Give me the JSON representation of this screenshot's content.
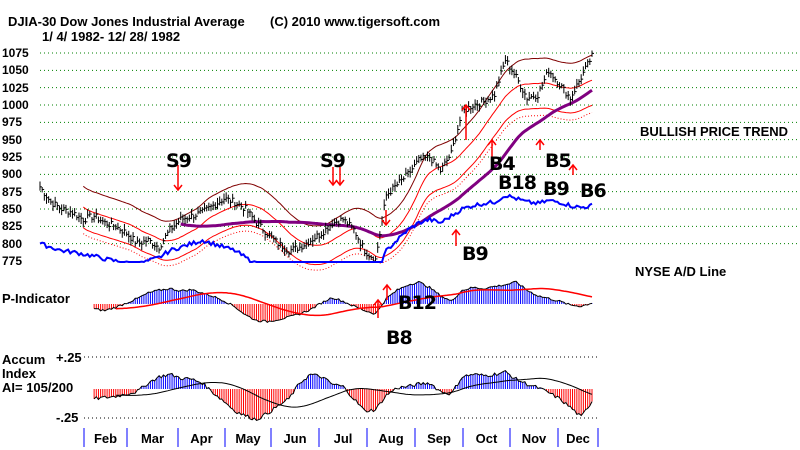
{
  "header": {
    "title": "DJIA-30  Dow Jones Industrial Average",
    "copyright": "(C) 2010 www.tigersoft.com",
    "date_range": "1/ 4/ 1982- 12/ 28/ 1982"
  },
  "labels": {
    "trend": "BULLISH PRICE TREND",
    "ad_line": "NYSE A/D Line",
    "p_indicator": "P-Indicator",
    "accum_1": "Accum",
    "accum_2": "Index",
    "ai": "AI= 105/200",
    "ai_top": "+.25",
    "ai_bottom": "-.25"
  },
  "signals": [
    "S9",
    "S9",
    "B4",
    "B18",
    "B5",
    "B9",
    "B6",
    "B9",
    "B12",
    "B8"
  ],
  "colors": {
    "price": "#000000",
    "band": "#ff0000",
    "outer_band": "#800000",
    "ma": "#800080",
    "ad": "#0000ff",
    "positive": "#0000ff",
    "negative": "#ff0000",
    "grid": "#008000"
  },
  "chart_data": {
    "type": "line",
    "title": "DJIA-30 Dow Jones Industrial Average",
    "yticks": [
      1075,
      1050,
      1025,
      1000,
      975,
      950,
      925,
      900,
      875,
      850,
      825,
      800,
      775
    ],
    "ylim": [
      775,
      1075
    ],
    "months": [
      "Feb",
      "Mar",
      "Apr",
      "May",
      "Jun",
      "Jul",
      "Aug",
      "Sep",
      "Oct",
      "Nov",
      "Dec"
    ],
    "weekly_close": [
      882,
      860,
      850,
      845,
      835,
      840,
      830,
      825,
      815,
      800,
      805,
      795,
      820,
      835,
      840,
      845,
      855,
      865,
      860,
      850,
      830,
      815,
      800,
      790,
      795,
      805,
      815,
      830,
      835,
      820,
      790,
      777,
      870,
      885,
      900,
      920,
      925,
      905,
      930,
      990,
      1000,
      1005,
      1015,
      1065,
      1040,
      1010,
      1015,
      1050,
      1030,
      1010,
      1040,
      1070
    ],
    "ad_line": [
      800,
      795,
      790,
      788,
      785,
      782,
      778,
      775,
      772,
      770,
      775,
      780,
      790,
      795,
      800,
      805,
      800,
      795,
      790,
      780,
      770,
      765,
      760,
      755,
      760,
      765,
      770,
      768,
      766,
      764,
      760,
      752,
      790,
      805,
      820,
      830,
      835,
      830,
      840,
      850,
      855,
      858,
      860,
      870,
      865,
      860,
      858,
      862,
      860,
      855,
      852,
      855
    ],
    "p_indicator": [
      -10,
      -8,
      -6,
      -8,
      -10,
      -9,
      -12,
      -6,
      2,
      10,
      20,
      25,
      28,
      24,
      26,
      20,
      14,
      6,
      -5,
      -20,
      -30,
      -32,
      -28,
      -24,
      -18,
      -10,
      2,
      12,
      5,
      -4,
      -12,
      -18,
      10,
      25,
      35,
      40,
      30,
      15,
      5,
      25,
      30,
      28,
      32,
      35,
      40,
      25,
      15,
      10,
      5,
      -2,
      -4,
      2
    ],
    "accum_index": [
      -0.03,
      -0.05,
      -0.02,
      -0.04,
      -0.06,
      -0.08,
      -0.07,
      -0.06,
      -0.04,
      -0.02,
      0.05,
      0.1,
      0.12,
      0.09,
      0.08,
      0.05,
      -0.03,
      -0.1,
      -0.18,
      -0.22,
      -0.25,
      -0.2,
      -0.14,
      -0.08,
      0.05,
      0.12,
      0.1,
      0.04,
      0.02,
      -0.08,
      -0.18,
      -0.17,
      -0.05,
      0.01,
      0.02,
      0.04,
      0.05,
      -0.02,
      -0.04,
      0.1,
      0.12,
      0.11,
      0.12,
      0.14,
      0.08,
      0.04,
      0.01,
      -0.03,
      -0.08,
      -0.15,
      -0.23,
      -0.1
    ]
  }
}
